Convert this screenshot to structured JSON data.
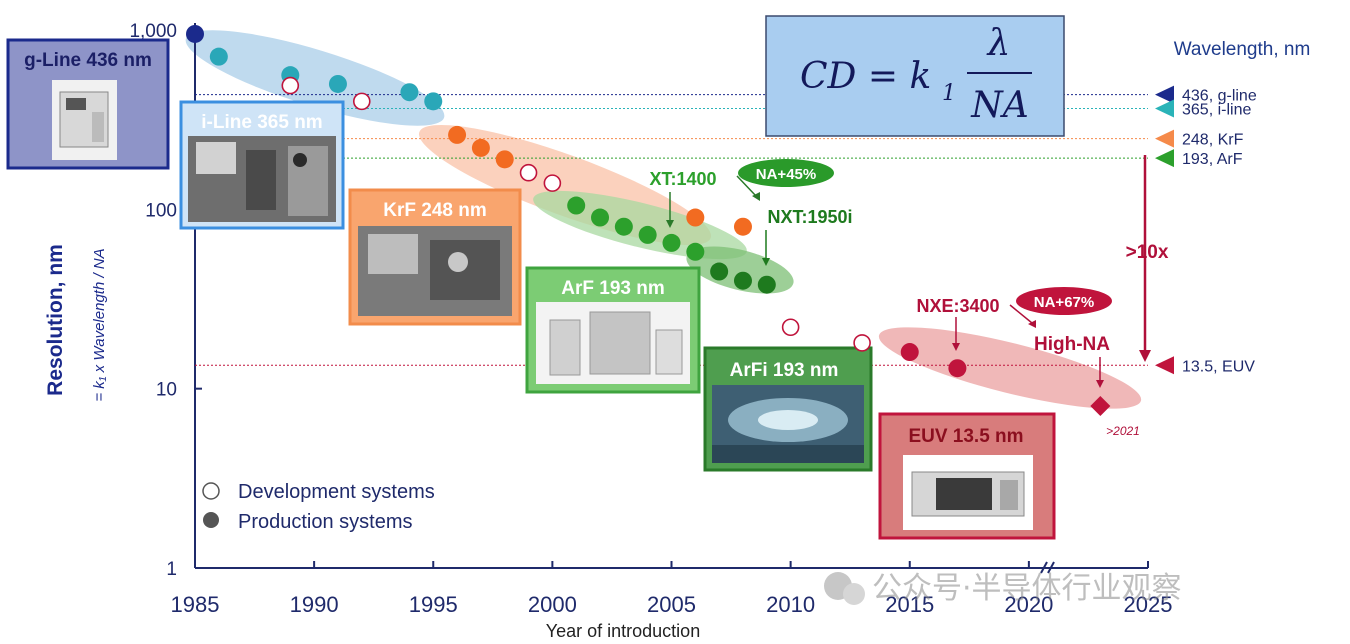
{
  "chart_data": {
    "type": "scatter",
    "title": "",
    "xlabel": "Year of introduction",
    "ylabel": "Resolution, nm",
    "ylabel_sub": "= k₁ x Wavelength / NA",
    "y_scale": "log",
    "ylim": [
      1,
      1000
    ],
    "xlim": [
      1985,
      2025
    ],
    "y_ticks": [
      {
        "v": 1000,
        "label": "1,000"
      },
      {
        "v": 100,
        "label": "100"
      },
      {
        "v": 10,
        "label": "10"
      },
      {
        "v": 1,
        "label": "1"
      }
    ],
    "x_ticks": [
      1985,
      1990,
      1995,
      2000,
      2005,
      2010,
      2015,
      2020,
      2025
    ],
    "axis_break": "between 2020 and 2025",
    "formula": {
      "lhs": "CD = k",
      "sub": "1",
      "num": "λ",
      "den": "NA"
    },
    "wavelength_title": "Wavelength, nm",
    "wavelengths": [
      {
        "value": 436,
        "label": "436, g-line",
        "color": "#1b2a8c"
      },
      {
        "value": 365,
        "label": "365, i-line",
        "color": "#2ab3b8"
      },
      {
        "value": 248,
        "label": "248, KrF",
        "color": "#f58a4a"
      },
      {
        "value": 193,
        "label": "193, ArF",
        "color": "#2ca02c"
      },
      {
        "value": 13.5,
        "label": "13.5, EUV",
        "color": "#c0143c"
      }
    ],
    "series": [
      {
        "name": "g-line production",
        "color": "#1b2a8c",
        "filled": true,
        "points": [
          [
            1985,
            950
          ]
        ]
      },
      {
        "name": "i-line production",
        "color": "#2aa7b8",
        "filled": true,
        "points": [
          [
            1986,
            710
          ],
          [
            1989,
            560
          ],
          [
            1991,
            500
          ],
          [
            1994,
            450
          ],
          [
            1995,
            400
          ]
        ]
      },
      {
        "name": "i-line development",
        "color": "#c0143c",
        "filled": false,
        "points": [
          [
            1989,
            490
          ],
          [
            1992,
            400
          ]
        ]
      },
      {
        "name": "KrF production",
        "color": "#f26b21",
        "filled": true,
        "points": [
          [
            1996,
            260
          ],
          [
            1997,
            220
          ],
          [
            1998,
            190
          ],
          [
            2006,
            90
          ],
          [
            2008,
            80
          ]
        ]
      },
      {
        "name": "KrF development",
        "color": "#c0143c",
        "filled": false,
        "points": [
          [
            1999,
            160
          ],
          [
            2000,
            140
          ]
        ]
      },
      {
        "name": "ArF production",
        "color": "#2ca02c",
        "filled": true,
        "points": [
          [
            2001,
            105
          ],
          [
            2002,
            90
          ],
          [
            2003,
            80
          ],
          [
            2004,
            72
          ],
          [
            2005,
            65
          ],
          [
            2006,
            58
          ]
        ]
      },
      {
        "name": "ArFi production",
        "color": "#1e7a1e",
        "filled": true,
        "points": [
          [
            2007,
            45
          ],
          [
            2008,
            40
          ],
          [
            2009,
            38
          ]
        ]
      },
      {
        "name": "EUV development",
        "color": "#c0143c",
        "filled": false,
        "points": [
          [
            2010,
            22
          ],
          [
            2013,
            18
          ]
        ]
      },
      {
        "name": "EUV production",
        "color": "#c0143c",
        "filled": true,
        "points": [
          [
            2015,
            16
          ],
          [
            2017,
            13
          ]
        ]
      },
      {
        "name": "High-NA",
        "color": "#c0143c",
        "marker": "diamond",
        "filled": true,
        "points": [
          [
            2023,
            8
          ]
        ]
      }
    ],
    "annotations": {
      "xt1400": "XT:1400",
      "nxt1950i": "NXT:1950i",
      "na45": "NA+45%",
      "nxe3400": "NXE:3400",
      "na67": "NA+67%",
      "highna": "High-NA",
      "x10": ">10x",
      "y2021": ">2021"
    },
    "panels": [
      {
        "label": "g-Line 436 nm"
      },
      {
        "label": "i-Line 365 nm"
      },
      {
        "label": "KrF 248 nm"
      },
      {
        "label": "ArF 193 nm"
      },
      {
        "label": "ArFi 193 nm"
      },
      {
        "label": "EUV 13.5 nm"
      }
    ],
    "legend": [
      {
        "label": "Development systems",
        "filled": false
      },
      {
        "label": "Production systems",
        "filled": true
      }
    ]
  },
  "watermark": "公众号·半导体行业观察"
}
